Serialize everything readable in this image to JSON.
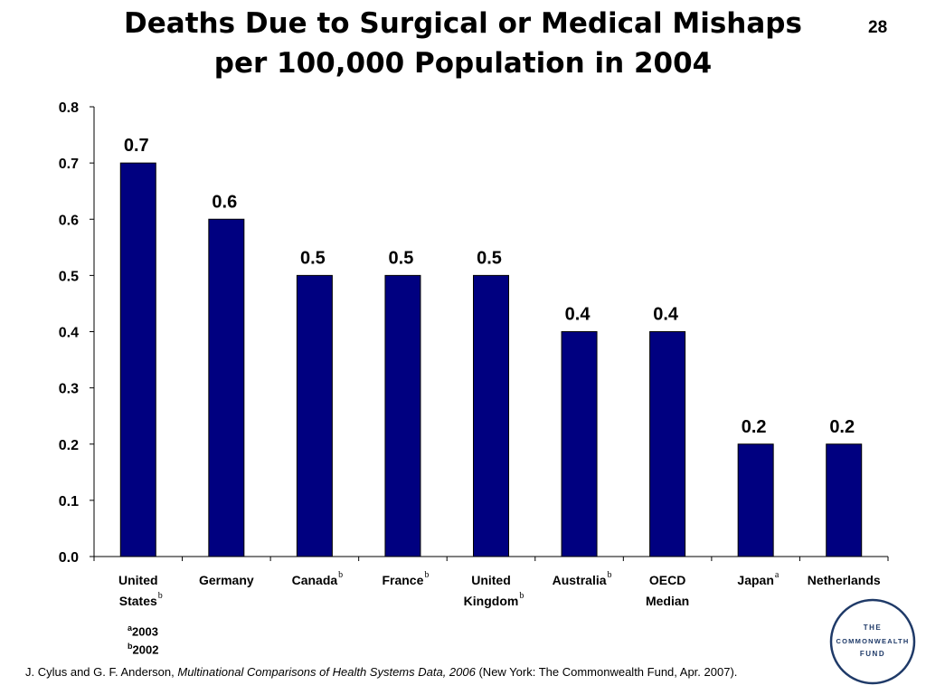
{
  "header": {
    "title_line1": "Deaths Due to Surgical or Medical Mishaps",
    "title_line2": "per 100,000 Population in 2004",
    "page_number": "28"
  },
  "chart_data": {
    "type": "bar",
    "title": "Deaths Due to Surgical or Medical Mishaps per 100,000 Population in 2004",
    "categories": [
      {
        "lines": [
          "United",
          "States"
        ],
        "note": "b"
      },
      {
        "lines": [
          "Germany"
        ],
        "note": ""
      },
      {
        "lines": [
          "Canada"
        ],
        "note": "b"
      },
      {
        "lines": [
          "France"
        ],
        "note": "b"
      },
      {
        "lines": [
          "United",
          "Kingdom"
        ],
        "note": "b"
      },
      {
        "lines": [
          "Australia"
        ],
        "note": "b"
      },
      {
        "lines": [
          "OECD",
          "Median"
        ],
        "note": ""
      },
      {
        "lines": [
          "Japan"
        ],
        "note": "a"
      },
      {
        "lines": [
          "Netherlands"
        ],
        "note": ""
      }
    ],
    "values": [
      0.7,
      0.6,
      0.5,
      0.5,
      0.5,
      0.4,
      0.4,
      0.2,
      0.2
    ],
    "data_labels": [
      "0.7",
      "0.6",
      "0.5",
      "0.5",
      "0.5",
      "0.4",
      "0.4",
      "0.2",
      "0.2"
    ],
    "ylim": [
      0,
      0.8
    ],
    "yticks": [
      "0.0",
      "0.1",
      "0.2",
      "0.3",
      "0.4",
      "0.5",
      "0.6",
      "0.7",
      "0.8"
    ],
    "bar_color": "#000080",
    "grid": false,
    "xlabel": "",
    "ylabel": ""
  },
  "footnotes": [
    {
      "mark": "a",
      "text": "2003"
    },
    {
      "mark": "b",
      "text": "2002"
    }
  ],
  "source": {
    "prefix": "J. Cylus and G. F. Anderson, ",
    "italic": "Multinational Comparisons of Health Systems Data, 2006",
    "suffix": " (New York: The Commonwealth Fund, Apr. 2007)."
  },
  "logo": {
    "line1": "THE",
    "line2": "COMMONWEALTH",
    "line3": "FUND",
    "color": "#1f3a68"
  }
}
